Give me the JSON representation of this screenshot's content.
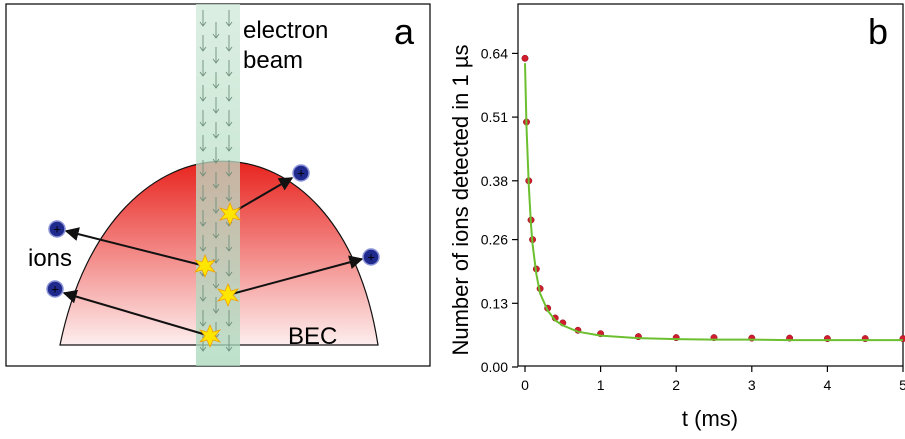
{
  "panel_a": {
    "letter": "a",
    "beam_label_line1": "electron",
    "beam_label_line2": "beam",
    "ions_label": "ions",
    "bec_label": "BEC",
    "ion_symbol": "+",
    "colors": {
      "bec_top": "#e8231e",
      "bec_bottom": "#fdeeee",
      "beam": "#b9dfc8",
      "ion_fill": "#1f2a8c",
      "sparkle": "#ffe600"
    },
    "icons": [
      "ion-icon",
      "collision-sparkle-icon",
      "beam-arrow-icon"
    ]
  },
  "chart_data": {
    "type": "scatter",
    "panel_letter": "b",
    "xlabel": "t (ms)",
    "ylabel": "Number of ions detected in 1 µs",
    "xlim": [
      0,
      5
    ],
    "ylim": [
      0,
      0.7
    ],
    "x_ticks": [
      "0",
      "1",
      "2",
      "3",
      "4",
      "5"
    ],
    "y_ticks": [
      "0.00",
      "0.13",
      "0.26",
      "0.38",
      "0.51",
      "0.64"
    ],
    "grid": false,
    "series": [
      {
        "kind": "data",
        "color": "#d01c2c",
        "x": [
          0.0,
          0.02,
          0.05,
          0.08,
          0.1,
          0.15,
          0.2,
          0.3,
          0.4,
          0.5,
          0.7,
          1.0,
          1.5,
          2.0,
          2.5,
          3.0,
          3.5,
          4.0,
          4.5,
          5.0
        ],
        "y": [
          0.63,
          0.5,
          0.38,
          0.3,
          0.26,
          0.2,
          0.16,
          0.12,
          0.1,
          0.09,
          0.075,
          0.068,
          0.062,
          0.06,
          0.06,
          0.059,
          0.059,
          0.058,
          0.058,
          0.058
        ]
      },
      {
        "kind": "fit",
        "color": "#6cbf2e",
        "x": [
          0.0,
          0.02,
          0.05,
          0.08,
          0.1,
          0.15,
          0.2,
          0.3,
          0.4,
          0.5,
          0.7,
          1.0,
          1.5,
          2.0,
          2.5,
          3.0,
          3.5,
          4.0,
          4.5,
          5.0
        ],
        "y": [
          0.62,
          0.49,
          0.37,
          0.29,
          0.25,
          0.19,
          0.15,
          0.115,
          0.095,
          0.085,
          0.072,
          0.064,
          0.059,
          0.057,
          0.056,
          0.056,
          0.055,
          0.055,
          0.055,
          0.055
        ]
      }
    ]
  }
}
